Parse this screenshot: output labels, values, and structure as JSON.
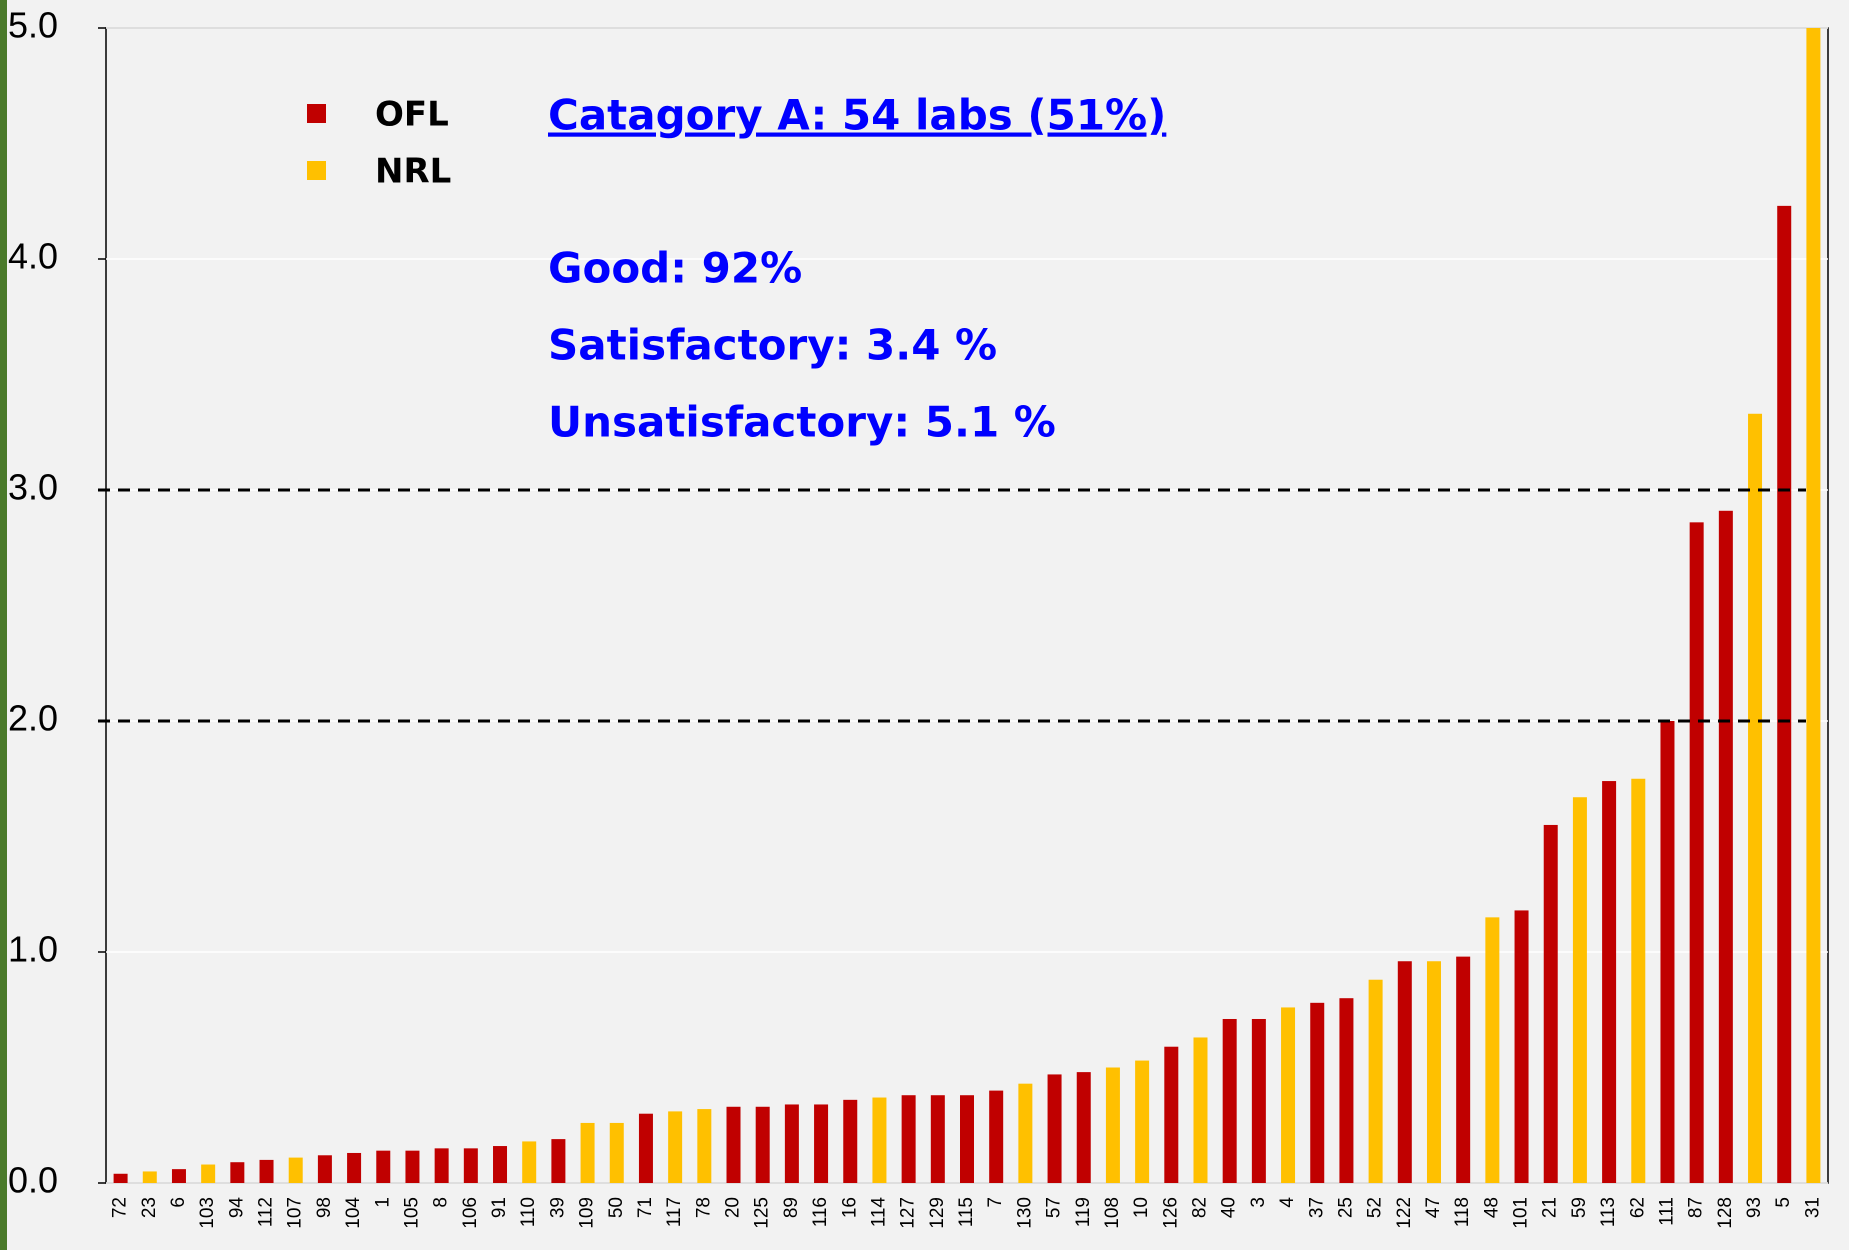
{
  "chart_data": {
    "type": "bar",
    "categories": [
      "72",
      "23",
      "6",
      "103",
      "94",
      "112",
      "107",
      "98",
      "104",
      "1",
      "105",
      "8",
      "106",
      "91",
      "110",
      "39",
      "109",
      "50",
      "71",
      "117",
      "78",
      "20",
      "125",
      "89",
      "116",
      "16",
      "114",
      "127",
      "129",
      "115",
      "7",
      "130",
      "57",
      "119",
      "108",
      "10",
      "126",
      "82",
      "40",
      "3",
      "4",
      "37",
      "25",
      "52",
      "122",
      "47",
      "118",
      "48",
      "101",
      "21",
      "59",
      "113",
      "62",
      "111",
      "87",
      "128",
      "93",
      "5",
      "31"
    ],
    "series": [
      {
        "name": "OFL",
        "color": "#c00000",
        "values": [
          0.04,
          null,
          0.06,
          null,
          0.09,
          0.1,
          null,
          0.12,
          0.13,
          0.14,
          0.14,
          0.15,
          0.15,
          0.16,
          null,
          0.19,
          null,
          null,
          0.3,
          null,
          null,
          0.33,
          0.33,
          0.34,
          0.34,
          0.36,
          null,
          0.38,
          0.38,
          0.38,
          0.4,
          null,
          0.47,
          0.48,
          null,
          null,
          0.59,
          null,
          0.71,
          0.71,
          null,
          0.78,
          0.8,
          null,
          0.96,
          null,
          0.98,
          null,
          1.18,
          1.55,
          null,
          1.74,
          null,
          2.0,
          2.86,
          2.91,
          null,
          4.23,
          null
        ]
      },
      {
        "name": "NRL",
        "color": "#ffc000",
        "values": [
          null,
          0.05,
          null,
          0.08,
          null,
          null,
          0.11,
          null,
          null,
          null,
          null,
          null,
          null,
          null,
          0.18,
          null,
          0.26,
          0.26,
          null,
          0.31,
          0.32,
          null,
          null,
          null,
          null,
          null,
          0.37,
          null,
          null,
          null,
          null,
          0.43,
          null,
          null,
          0.5,
          0.53,
          null,
          0.63,
          null,
          null,
          0.76,
          null,
          null,
          0.88,
          null,
          0.96,
          null,
          1.15,
          null,
          null,
          1.67,
          null,
          1.75,
          null,
          null,
          null,
          3.33,
          null,
          5.0
        ]
      }
    ],
    "ylim": [
      0,
      5
    ],
    "yticks": [
      {
        "value": 0,
        "label": "0.0"
      },
      {
        "value": 1,
        "label": "1.0"
      },
      {
        "value": 2,
        "label": "2.0"
      },
      {
        "value": 3,
        "label": "3.0"
      },
      {
        "value": 4,
        "label": "4.0"
      },
      {
        "value": 5,
        "label": "5.0"
      }
    ],
    "grid": true,
    "reference_lines": [
      2,
      3
    ],
    "annotations": [
      "Catagory A: 54 labs (51%)",
      "Good: 92%",
      "Satisfactory: 3.4 %",
      "Unsatisfactory: 5.1 %"
    ]
  }
}
